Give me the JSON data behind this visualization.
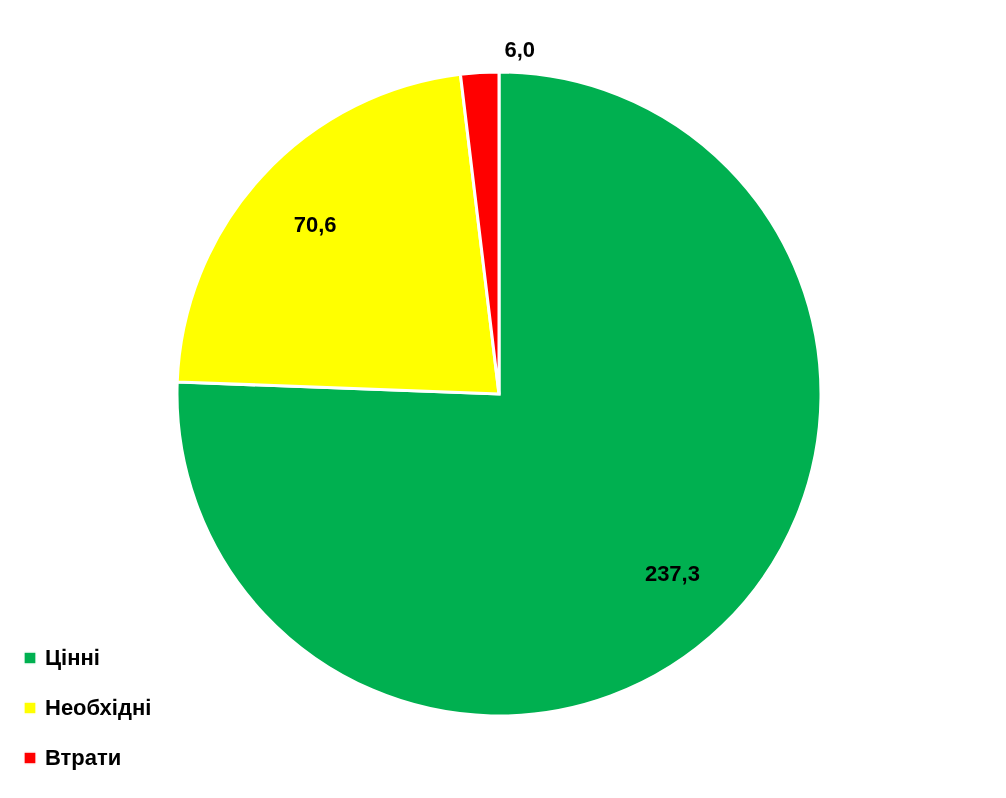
{
  "chart_data": {
    "type": "pie",
    "categories": [
      "Цінні",
      "Необхідні",
      "Втрати"
    ],
    "values": [
      237.3,
      70.6,
      6.0
    ],
    "colors": [
      "#00b050",
      "#ffff00",
      "#ff0000"
    ],
    "value_labels": [
      "237,3",
      "70,6",
      "6,0"
    ],
    "legend": "bottom left"
  }
}
